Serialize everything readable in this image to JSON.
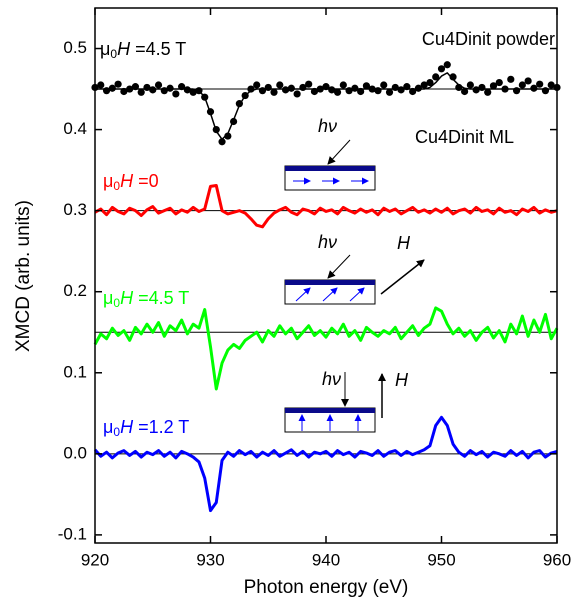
{
  "chart_data": {
    "type": "line",
    "x_label": "Photon energy (eV)",
    "y_label": "XMCD (arb. units)",
    "xlim": [
      920,
      960
    ],
    "xticks": [
      920,
      930,
      940,
      950,
      960
    ],
    "ylim": [
      -0.11,
      0.55
    ],
    "yticks": [
      -0.1,
      {
        "value": 0,
        "label": "0.0"
      },
      0.1,
      0.2,
      0.3,
      0.4,
      0.5
    ],
    "reference_lines": [
      0.45,
      0.3,
      0.15,
      0
    ],
    "x": [
      920,
      920.5,
      921,
      921.5,
      922,
      922.5,
      923,
      923.5,
      924,
      924.5,
      925,
      925.5,
      926,
      926.5,
      927,
      927.5,
      928,
      928.5,
      929,
      929.5,
      930,
      930.5,
      931,
      931.5,
      932,
      932.5,
      933,
      933.5,
      934,
      934.5,
      935,
      935.5,
      936,
      936.5,
      937,
      937.5,
      938,
      938.5,
      939,
      939.5,
      940,
      940.5,
      941,
      941.5,
      942,
      942.5,
      943,
      943.5,
      944,
      944.5,
      945,
      945.5,
      946,
      946.5,
      947,
      947.5,
      948,
      948.5,
      949,
      949.5,
      950,
      950.5,
      951,
      951.5,
      952,
      952.5,
      953,
      953.5,
      954,
      954.5,
      955,
      955.5,
      956,
      956.5,
      957,
      957.5,
      958,
      958.5,
      959,
      959.5,
      960
    ],
    "series": [
      {
        "style": "markers",
        "color": "#000000",
        "label": [
          "μ",
          "0",
          "H",
          " =4.5 T"
        ],
        "values": [
          0.452,
          0.455,
          0.448,
          0.451,
          0.456,
          0.447,
          0.45,
          0.453,
          0.446,
          0.452,
          0.449,
          0.455,
          0.448,
          0.451,
          0.444,
          0.453,
          0.449,
          0.446,
          0.448,
          0.44,
          0.422,
          0.4,
          0.385,
          0.392,
          0.41,
          0.432,
          0.442,
          0.45,
          0.455,
          0.448,
          0.452,
          0.446,
          0.455,
          0.449,
          0.451,
          0.444,
          0.452,
          0.456,
          0.447,
          0.45,
          0.453,
          0.449,
          0.446,
          0.455,
          0.448,
          0.451,
          0.447,
          0.454,
          0.45,
          0.448,
          0.455,
          0.446,
          0.452,
          0.449,
          0.453,
          0.447,
          0.451,
          0.455,
          0.458,
          0.465,
          0.475,
          0.48,
          0.465,
          0.452,
          0.447,
          0.455,
          0.449,
          0.452,
          0.446,
          0.454,
          0.458,
          0.45,
          0.462,
          0.448,
          0.455,
          0.46,
          0.451,
          0.456,
          0.448,
          0.455,
          0.452
        ]
      },
      {
        "style": "line",
        "color": "#000000",
        "values": [
          0.45,
          0.45,
          0.45,
          0.45,
          0.45,
          0.45,
          0.45,
          0.45,
          0.45,
          0.45,
          0.45,
          0.45,
          0.45,
          0.45,
          0.45,
          0.45,
          0.45,
          0.45,
          0.448,
          0.44,
          0.42,
          0.398,
          0.388,
          0.395,
          0.412,
          0.43,
          0.442,
          0.448,
          0.45,
          0.45,
          0.45,
          0.45,
          0.45,
          0.45,
          0.45,
          0.45,
          0.45,
          0.45,
          0.45,
          0.45,
          0.45,
          0.45,
          0.45,
          0.45,
          0.45,
          0.45,
          0.45,
          0.45,
          0.45,
          0.45,
          0.45,
          0.45,
          0.45,
          0.45,
          0.45,
          0.45,
          0.45,
          0.45,
          0.452,
          0.458,
          0.466,
          0.47,
          0.462,
          0.455,
          0.451,
          0.45,
          0.45,
          0.45,
          0.45,
          0.45,
          0.45,
          0.45,
          0.45,
          0.45,
          0.45,
          0.45,
          0.45,
          0.45,
          0.45,
          0.45,
          0.45
        ]
      },
      {
        "style": "line",
        "color": "#ff0000",
        "label": [
          "μ",
          "0",
          "H",
          " =0"
        ],
        "values": [
          0.298,
          0.302,
          0.295,
          0.304,
          0.299,
          0.296,
          0.303,
          0.3,
          0.294,
          0.301,
          0.305,
          0.297,
          0.3,
          0.303,
          0.296,
          0.301,
          0.298,
          0.304,
          0.299,
          0.302,
          0.33,
          0.331,
          0.3,
          0.296,
          0.298,
          0.3,
          0.297,
          0.29,
          0.282,
          0.28,
          0.29,
          0.297,
          0.301,
          0.304,
          0.298,
          0.295,
          0.302,
          0.3,
          0.296,
          0.303,
          0.299,
          0.301,
          0.296,
          0.304,
          0.3,
          0.297,
          0.302,
          0.298,
          0.301,
          0.295,
          0.303,
          0.299,
          0.302,
          0.296,
          0.3,
          0.304,
          0.298,
          0.301,
          0.297,
          0.302,
          0.298,
          0.303,
          0.296,
          0.3,
          0.302,
          0.297,
          0.304,
          0.299,
          0.301,
          0.296,
          0.303,
          0.298,
          0.3,
          0.295,
          0.302,
          0.299,
          0.304,
          0.297,
          0.301,
          0.298,
          0.3
        ]
      },
      {
        "style": "line",
        "color": "#00ff00",
        "label": [
          "μ",
          "0",
          "H",
          " =4.5 T"
        ],
        "values": [
          0.135,
          0.148,
          0.142,
          0.155,
          0.146,
          0.152,
          0.14,
          0.156,
          0.148,
          0.16,
          0.15,
          0.162,
          0.145,
          0.158,
          0.152,
          0.165,
          0.148,
          0.16,
          0.155,
          0.178,
          0.132,
          0.08,
          0.112,
          0.128,
          0.135,
          0.13,
          0.14,
          0.145,
          0.15,
          0.138,
          0.152,
          0.145,
          0.158,
          0.148,
          0.155,
          0.142,
          0.15,
          0.158,
          0.146,
          0.152,
          0.144,
          0.155,
          0.148,
          0.16,
          0.145,
          0.152,
          0.14,
          0.156,
          0.15,
          0.145,
          0.152,
          0.148,
          0.156,
          0.142,
          0.15,
          0.158,
          0.146,
          0.155,
          0.16,
          0.18,
          0.176,
          0.16,
          0.148,
          0.155,
          0.145,
          0.152,
          0.14,
          0.15,
          0.156,
          0.143,
          0.152,
          0.138,
          0.16,
          0.148,
          0.17,
          0.145,
          0.165,
          0.15,
          0.172,
          0.142,
          0.155
        ]
      },
      {
        "style": "line",
        "color": "#0000ff",
        "label": [
          "μ",
          "0",
          "H",
          " =1.2 T"
        ],
        "values": [
          0.005,
          -0.003,
          0.002,
          -0.005,
          0.001,
          0.004,
          -0.002,
          0.003,
          -0.004,
          0.002,
          -0.001,
          0.004,
          -0.003,
          0.002,
          -0.005,
          0.003,
          0.0,
          -0.004,
          -0.01,
          -0.03,
          -0.07,
          -0.06,
          -0.008,
          0.002,
          -0.003,
          0.004,
          -0.001,
          0.003,
          -0.004,
          0.002,
          -0.002,
          0.004,
          -0.003,
          0.001,
          0.005,
          -0.002,
          0.003,
          -0.004,
          0.002,
          0.0,
          0.003,
          -0.003,
          0.004,
          -0.001,
          0.002,
          -0.004,
          0.003,
          0.001,
          -0.002,
          0.004,
          -0.003,
          0.002,
          0.004,
          -0.002,
          0.003,
          -0.001,
          0.002,
          0.005,
          0.01,
          0.035,
          0.045,
          0.035,
          0.012,
          0.002,
          -0.003,
          0.004,
          -0.001,
          0.003,
          -0.004,
          0.002,
          0.0,
          -0.003,
          0.004,
          -0.002,
          0.003,
          -0.005,
          0.002,
          0.004,
          -0.004,
          0.001,
          0.003
        ]
      }
    ],
    "annotations": [
      "Cu4Dinit powder",
      "Cu4Dinit ML",
      "hν",
      "hν",
      "H",
      "hν",
      "H"
    ]
  }
}
